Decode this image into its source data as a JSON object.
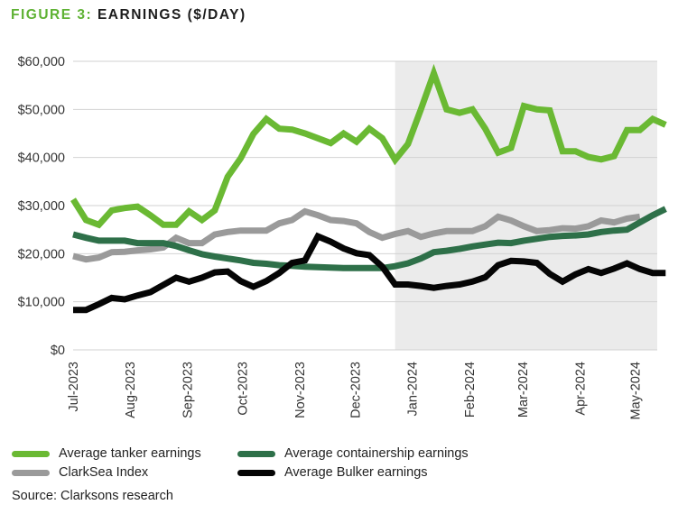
{
  "figure": {
    "label": "FIGURE 3:",
    "title": "EARNINGS ($/DAY)",
    "source": "Source: Clarksons research"
  },
  "colors": {
    "tanker": "#6ab933",
    "containership": "#2e7049",
    "clarksea": "#9a9a9a",
    "bulker": "#050505",
    "shade": "#ebebeb",
    "grid": "#d2d2d2",
    "axis_text": "#333333",
    "title_accent": "#5fb234"
  },
  "chart_data": {
    "type": "line",
    "title": "EARNINGS ($/DAY)",
    "xlabel": "",
    "ylabel": "",
    "ylim": [
      0,
      60000
    ],
    "yticks": [
      0,
      10000,
      20000,
      30000,
      40000,
      50000,
      60000
    ],
    "ytick_labels": [
      "$0",
      "$10,000",
      "$20,000",
      "$30,000",
      "$40,000",
      "$50,000",
      "$60,000"
    ],
    "x_index_range": [
      0,
      45
    ],
    "x_ticks": [
      {
        "i": 0,
        "label": "Jul-2023"
      },
      {
        "i": 4.43,
        "label": "Aug-2023"
      },
      {
        "i": 8.87,
        "label": "Sep-2023"
      },
      {
        "i": 13.16,
        "label": "Oct-2023"
      },
      {
        "i": 17.6,
        "label": "Nov-2023"
      },
      {
        "i": 21.89,
        "label": "Dec-2023"
      },
      {
        "i": 26.33,
        "label": "Jan-2024"
      },
      {
        "i": 30.76,
        "label": "Feb-2024"
      },
      {
        "i": 34.91,
        "label": "Mar-2024"
      },
      {
        "i": 39.34,
        "label": "Apr-2024"
      },
      {
        "i": 43.63,
        "label": "May-2024"
      }
    ],
    "shaded_from_index": 25,
    "grid": true,
    "legend_position": "bottom",
    "series": [
      {
        "key": "clarksea",
        "name": "ClarkSea Index",
        "values": [
          19500,
          18800,
          19200,
          20300,
          20400,
          20700,
          20900,
          21300,
          23300,
          22200,
          22200,
          24000,
          24500,
          24800,
          24800,
          24800,
          26300,
          27000,
          28800,
          28000,
          27000,
          26800,
          26300,
          24500,
          23300,
          24100,
          24700,
          23500,
          24200,
          24700,
          24700,
          24700,
          25700,
          27700,
          26900,
          25700,
          24700,
          24900,
          25300,
          25200,
          25700,
          26900,
          26500,
          27300,
          27700
        ]
      },
      {
        "key": "tanker",
        "name": "Average tanker earnings",
        "values": [
          31300,
          27000,
          26000,
          29000,
          29500,
          29800,
          28000,
          26000,
          26000,
          28800,
          27000,
          29000,
          36000,
          39800,
          44900,
          48000,
          46000,
          45800,
          45000,
          44000,
          43000,
          45000,
          43300,
          46000,
          44000,
          39500,
          42800,
          50000,
          57500,
          50000,
          49300,
          50000,
          46000,
          41000,
          42000,
          50700,
          50000,
          49800,
          41300,
          41300,
          40100,
          39600,
          40300,
          45700,
          45700,
          48000,
          46800
        ]
      },
      {
        "key": "containership",
        "name": "Average containership earnings",
        "values": [
          24000,
          23300,
          22700,
          22700,
          22700,
          22200,
          22200,
          22200,
          21600,
          20700,
          19900,
          19400,
          19000,
          18600,
          18100,
          17900,
          17600,
          17500,
          17300,
          17200,
          17100,
          17000,
          17000,
          17000,
          17000,
          17400,
          18000,
          19000,
          20300,
          20600,
          21000,
          21500,
          21900,
          22300,
          22200,
          22700,
          23100,
          23500,
          23700,
          23800,
          24000,
          24500,
          24800,
          25000,
          26500,
          28000,
          29300
        ]
      },
      {
        "key": "bulker",
        "name": "Average Bulker earnings",
        "values": [
          8300,
          8300,
          9500,
          10800,
          10500,
          11300,
          12000,
          13500,
          15000,
          14200,
          15000,
          16100,
          16300,
          14300,
          13100,
          14300,
          16000,
          18100,
          18600,
          23600,
          22500,
          21100,
          20100,
          19700,
          17300,
          13600,
          13600,
          13300,
          12900,
          13300,
          13600,
          14200,
          15100,
          17600,
          18500,
          18400,
          18100,
          15800,
          14200,
          15700,
          16800,
          16000,
          16900,
          18000,
          16800,
          16000,
          16000
        ]
      }
    ]
  },
  "legend": {
    "tanker": "Average tanker earnings",
    "clarksea": "ClarkSea Index",
    "containership": "Average containership earnings",
    "bulker": "Average Bulker earnings"
  }
}
